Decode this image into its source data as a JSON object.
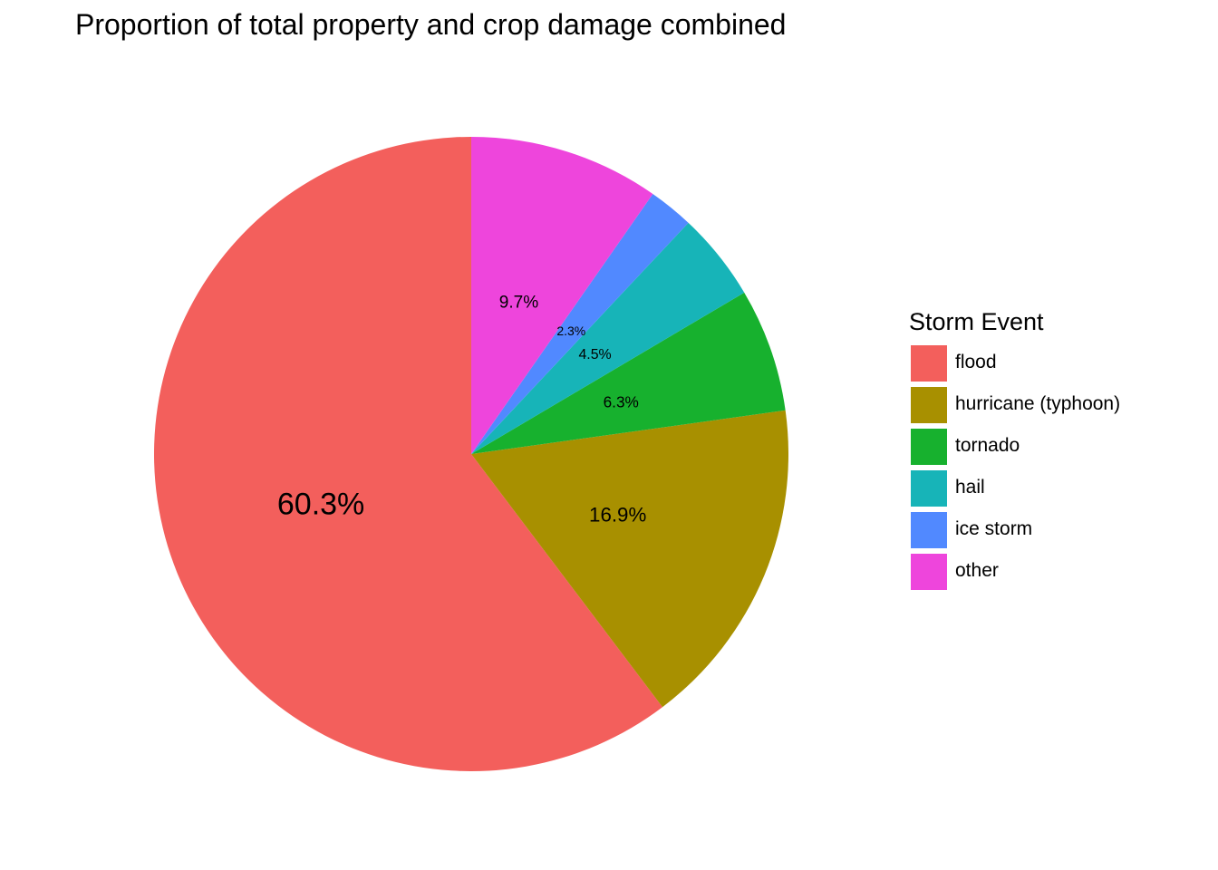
{
  "chart_data": {
    "type": "pie",
    "title": "Proportion of total property and crop damage combined",
    "legend_title": "Storm Event",
    "legend_position": "right",
    "start": "top",
    "direction": "counter-clockwise",
    "slices": [
      {
        "name": "flood",
        "value": 60.3,
        "label": "60.3%",
        "color": "#F35F5C"
      },
      {
        "name": "hurricane (typhoon)",
        "value": 16.9,
        "label": "16.9%",
        "color": "#A89000"
      },
      {
        "name": "tornado",
        "value": 6.3,
        "label": "6.3%",
        "color": "#17B12E"
      },
      {
        "name": "hail",
        "value": 4.5,
        "label": "4.5%",
        "color": "#17B4B8"
      },
      {
        "name": "ice storm",
        "value": 2.3,
        "label": "2.3%",
        "color": "#5189FF"
      },
      {
        "name": "other",
        "value": 9.7,
        "label": "9.7%",
        "color": "#EE45DC"
      }
    ]
  }
}
